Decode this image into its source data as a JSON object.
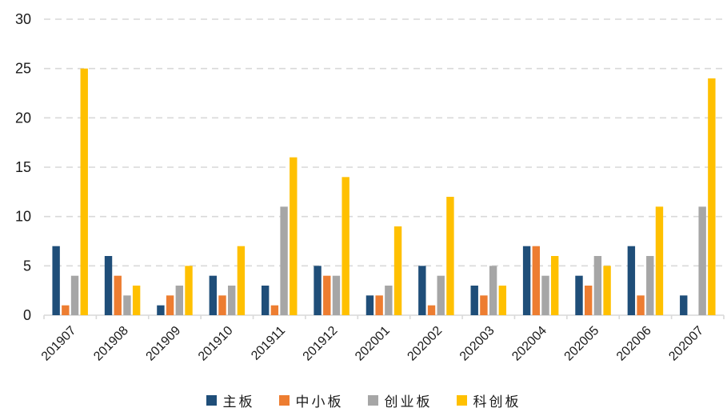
{
  "chart_data": {
    "type": "bar",
    "title": "",
    "xlabel": "",
    "ylabel": "",
    "categories": [
      "201907",
      "201908",
      "201909",
      "201910",
      "201911",
      "201912",
      "202001",
      "202002",
      "202003",
      "202004",
      "202005",
      "202006",
      "202007"
    ],
    "series": [
      {
        "name": "主板",
        "color": "#1F4E79",
        "values": [
          7,
          6,
          1,
          4,
          3,
          5,
          2,
          5,
          3,
          7,
          4,
          7,
          2
        ]
      },
      {
        "name": "中小板",
        "color": "#ED7D31",
        "values": [
          1,
          4,
          2,
          2,
          1,
          4,
          2,
          1,
          2,
          7,
          3,
          2,
          0
        ]
      },
      {
        "name": "创业板",
        "color": "#A6A6A6",
        "values": [
          4,
          2,
          3,
          3,
          11,
          4,
          3,
          4,
          5,
          4,
          6,
          6,
          11
        ]
      },
      {
        "name": "科创板",
        "color": "#FFC000",
        "values": [
          25,
          3,
          5,
          7,
          16,
          14,
          9,
          12,
          3,
          6,
          5,
          11,
          24
        ]
      }
    ],
    "ylim": [
      0,
      30
    ],
    "yticks": [
      0,
      5,
      10,
      15,
      20,
      25,
      30
    ],
    "grid": "horizontal-dashed",
    "gridline_color": "#D9D9D9",
    "axis_text_color": "#1a1a1a",
    "legend_position": "bottom",
    "xtick_rotation": -45
  }
}
